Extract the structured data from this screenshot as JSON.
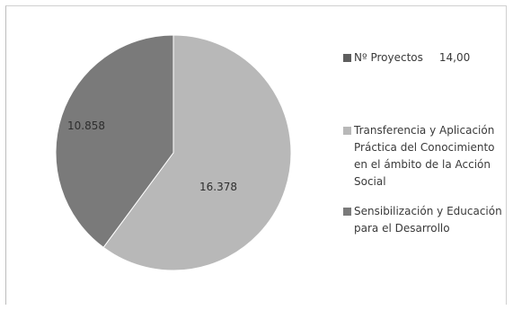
{
  "chart_data": {
    "type": "pie",
    "series_header": {
      "label": "Nº Proyectos",
      "value": "14,00",
      "color": "#5e5e5e"
    },
    "slices": [
      {
        "name": "Transferencia y Aplicación Práctica del Conocimiento en el ámbito de la Acción Social",
        "value": 16378,
        "label": "16.378",
        "color": "#b8b8b8"
      },
      {
        "name": "Sensibilización y Educación para el Desarrollo",
        "value": 10858,
        "label": "10.858",
        "color": "#7a7a7a"
      }
    ],
    "legend_position": "right"
  }
}
